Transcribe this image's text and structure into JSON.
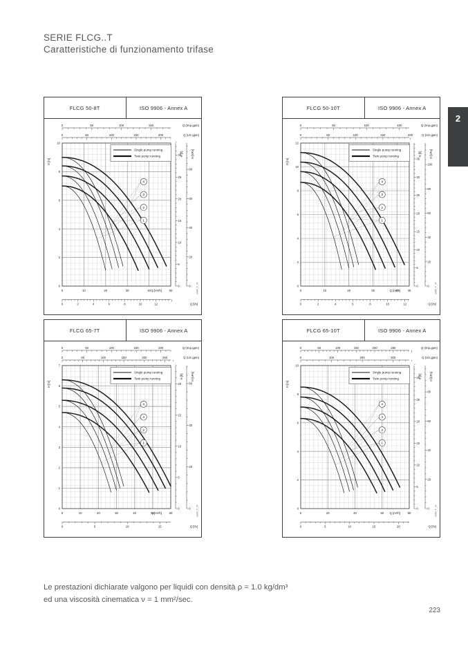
{
  "page": {
    "title_line1": "SERIE FLCG..T",
    "title_line2": "Caratteristiche di funzionamento trifase",
    "section_tab": "2",
    "footnote_line1": "Le prestazioni dichiarate valgono per liquidi con densità ρ = 1.0 kg/dm³",
    "footnote_line2": "ed una viscosità cinematica ν = 1 mm²/sec.",
    "page_number": "223"
  },
  "legend": {
    "single": "Single pump running",
    "twin": "Twin pump running"
  },
  "chart_data": [
    {
      "type": "line",
      "model": "FLCG 50-8T",
      "standard": "ISO 9906 - Annex A",
      "code": "GMM_P_04",
      "x": {
        "m3h_max": 50,
        "m3h_ticks": [
          0,
          10,
          20,
          30,
          40,
          50
        ],
        "m3h_label": "Q [m³/h]",
        "ls_ticks": [
          0,
          2,
          4,
          6,
          8,
          10,
          12
        ],
        "ls_label": "Q [l/s]",
        "imp_ticks": [
          0,
          50,
          100,
          150
        ],
        "imp_label": "Q (Imp.gpm)",
        "us_ticks": [
          0,
          50,
          100,
          150,
          200
        ],
        "us_label": "Q (US gpm)"
      },
      "y": {
        "m_max": 10,
        "m_ticks": [
          0,
          2,
          4,
          6,
          8,
          10
        ],
        "m_label": "H [m]",
        "ft_ticks": [
          0,
          5,
          10,
          15,
          20,
          25,
          30
        ],
        "ft_label": "H [ft]",
        "kpa_ticks": [
          0,
          20,
          40,
          60,
          80
        ],
        "kpa_label": "H [kPa]"
      },
      "curves": [
        {
          "label": "1",
          "h0": 7.0,
          "h_end": 1.1,
          "q_single": 20,
          "q_twin": 35
        },
        {
          "label": "2",
          "h0": 7.7,
          "h_end": 1.2,
          "q_single": 23,
          "q_twin": 40
        },
        {
          "label": "3",
          "h0": 8.4,
          "h_end": 1.3,
          "q_single": 26,
          "q_twin": 44
        },
        {
          "label": "4",
          "h0": 9.0,
          "h_end": 1.4,
          "q_single": 28,
          "q_twin": 48
        }
      ]
    },
    {
      "type": "line",
      "model": "FLCG 50-10T",
      "standard": "ISO 9906 - Annex A",
      "code": "GMM_P_04",
      "x": {
        "m3h_max": 45,
        "m3h_ticks": [
          0,
          10,
          20,
          30,
          40,
          45
        ],
        "m3h_label": "Q [m³/h]",
        "ls_ticks": [
          0,
          2,
          4,
          6,
          8,
          10,
          12
        ],
        "ls_label": "Q [l/s]",
        "imp_ticks": [
          0,
          50,
          100,
          150
        ],
        "imp_label": "Q (Imp.gpm)",
        "us_ticks": [
          0,
          50,
          100,
          150,
          200
        ],
        "us_label": "Q (US gpm)"
      },
      "y": {
        "m_max": 12,
        "m_ticks": [
          0,
          2,
          4,
          6,
          8,
          10,
          12
        ],
        "m_label": "H [m]",
        "ft_ticks": [
          0,
          5,
          10,
          15,
          20,
          25,
          30,
          35
        ],
        "ft_label": "H [ft]",
        "kpa_ticks": [
          0,
          20,
          40,
          60,
          80,
          100
        ],
        "kpa_label": "H [kPa]"
      },
      "curves": [
        {
          "label": "1",
          "h0": 8.7,
          "h_end": 1.4,
          "q_single": 17,
          "q_twin": 31
        },
        {
          "label": "2",
          "h0": 9.6,
          "h_end": 1.5,
          "q_single": 20,
          "q_twin": 35
        },
        {
          "label": "3",
          "h0": 10.4,
          "h_end": 1.6,
          "q_single": 22,
          "q_twin": 39
        },
        {
          "label": "4",
          "h0": 11.2,
          "h_end": 1.8,
          "q_single": 24,
          "q_twin": 43
        }
      ]
    },
    {
      "type": "line",
      "model": "FLCG 65-7T",
      "standard": "ISO 9906 - Annex A",
      "code": "GMM_P_04",
      "x": {
        "m3h_max": 60,
        "m3h_ticks": [
          0,
          10,
          20,
          30,
          40,
          50,
          60
        ],
        "m3h_label": "Q [m³/h]",
        "ls_ticks": [
          0,
          5,
          10,
          15
        ],
        "ls_label": "Q [l/s]",
        "imp_ticks": [
          0,
          50,
          100,
          150,
          200
        ],
        "imp_label": "Q (Imp.gpm)",
        "us_ticks": [
          0,
          50,
          100,
          150,
          200,
          250
        ],
        "us_label": "Q (US gpm)"
      },
      "y": {
        "m_max": 7,
        "m_ticks": [
          0,
          1,
          2,
          3,
          4,
          5,
          6,
          7
        ],
        "m_label": "H [m]",
        "ft_ticks": [
          0,
          5,
          10,
          15,
          20
        ],
        "ft_label": "H [ft]",
        "kpa_ticks": [
          0,
          20,
          40,
          60
        ],
        "kpa_label": "H [kPa]"
      },
      "curves": [
        {
          "label": "1",
          "h0": 4.7,
          "h_end": 0.8,
          "q_single": 27,
          "q_twin": 48
        },
        {
          "label": "2",
          "h0": 5.3,
          "h_end": 0.9,
          "q_single": 30,
          "q_twin": 53
        },
        {
          "label": "3",
          "h0": 5.9,
          "h_end": 1.0,
          "q_single": 32,
          "q_twin": 57
        },
        {
          "label": "4",
          "h0": 6.3,
          "h_end": 1.1,
          "q_single": 34,
          "q_twin": 60
        }
      ]
    },
    {
      "type": "line",
      "model": "FLCG 65-10T",
      "standard": "ISO 9906 - Annex A",
      "code": "GMM_P_04",
      "x": {
        "m3h_max": 80,
        "m3h_ticks": [
          0,
          20,
          40,
          60,
          80
        ],
        "m3h_label": "Q [m³/h]",
        "ls_ticks": [
          0,
          5,
          10,
          15,
          20
        ],
        "ls_label": "Q [l/s]",
        "imp_ticks": [
          0,
          50,
          100,
          150,
          200,
          250
        ],
        "imp_label": "Q (Imp.gpm)",
        "us_ticks": [
          0,
          100,
          200,
          300
        ],
        "us_label": "Q (US gpm)"
      },
      "y": {
        "m_max": 10,
        "m_ticks": [
          0,
          2,
          4,
          6,
          8,
          10
        ],
        "m_label": "H [m]",
        "ft_ticks": [
          0,
          5,
          10,
          15,
          20,
          25,
          30
        ],
        "ft_label": "H [ft]",
        "kpa_ticks": [
          0,
          20,
          40,
          60,
          80
        ],
        "kpa_label": "H [kPa]"
      },
      "curves": [
        {
          "label": "1",
          "h0": 6.3,
          "h_end": 1.1,
          "q_single": 32,
          "q_twin": 56
        },
        {
          "label": "2",
          "h0": 7.1,
          "h_end": 1.2,
          "q_single": 36,
          "q_twin": 62
        },
        {
          "label": "3",
          "h0": 7.8,
          "h_end": 1.3,
          "q_single": 39,
          "q_twin": 68
        },
        {
          "label": "4",
          "h0": 8.5,
          "h_end": 1.5,
          "q_single": 42,
          "q_twin": 73
        }
      ]
    }
  ]
}
